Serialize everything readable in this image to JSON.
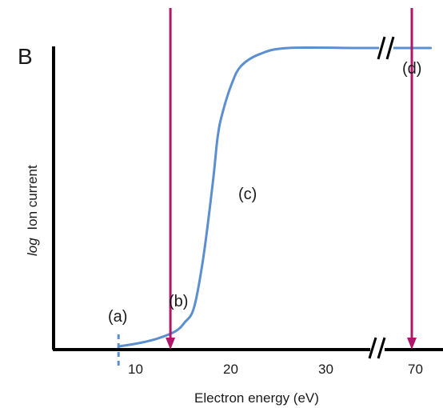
{
  "panel_label": "B",
  "chart_data": {
    "type": "line",
    "title": "",
    "xlabel": "Electron energy (eV)",
    "ylabel_italic": "log",
    "ylabel_rest": "Ion current",
    "x_ticks": [
      "10",
      "20",
      "30",
      "70"
    ],
    "x_axis_break": true,
    "y_ticks": [],
    "grid": false,
    "legend": "none",
    "series": [
      {
        "color": "#5b8fd0",
        "points": [
          [
            9,
            0.0
          ],
          [
            11,
            0.01
          ],
          [
            13,
            0.025
          ],
          [
            15,
            0.05
          ],
          [
            16,
            0.08
          ],
          [
            17,
            0.13
          ],
          [
            18,
            0.3
          ],
          [
            19,
            0.55
          ],
          [
            19.5,
            0.7
          ],
          [
            20,
            0.78
          ],
          [
            21,
            0.88
          ],
          [
            22,
            0.94
          ],
          [
            24,
            0.98
          ],
          [
            27,
            1.0
          ],
          [
            35,
            1.0
          ],
          [
            72,
            1.0
          ]
        ]
      }
    ],
    "annotations": [
      {
        "label": "(a)",
        "x": 9
      },
      {
        "label": "(b)",
        "x": 14.5
      },
      {
        "label": "(c)",
        "x": 20
      },
      {
        "label": "(d)",
        "x": 70
      }
    ],
    "vertical_markers": [
      {
        "x": 14.5,
        "color": "#b0176b"
      },
      {
        "x": 70,
        "color": "#b0176b"
      }
    ],
    "threshold_marker": {
      "x": 9,
      "color": "#5b8fd0",
      "style": "dashed"
    }
  }
}
